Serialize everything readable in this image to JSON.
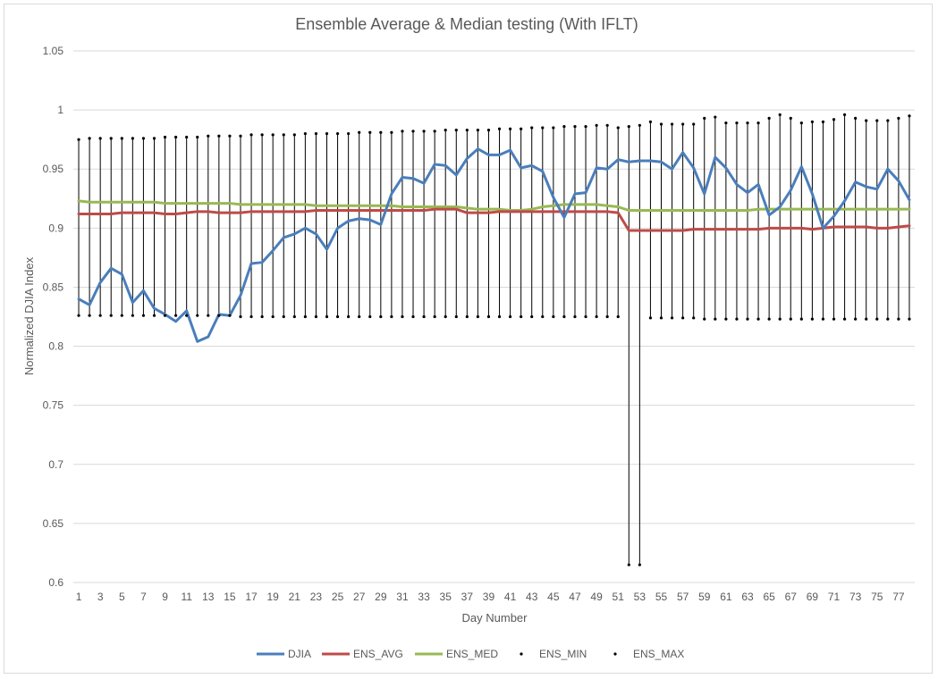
{
  "chart_data": {
    "type": "line",
    "title": "Ensemble Average & Median testing (With IFLT)",
    "xlabel": "Day Number",
    "ylabel": "Normalized DJIA Index",
    "ylim": [
      0.6,
      1.05
    ],
    "yticks": [
      "0.6",
      "0.65",
      "0.7",
      "0.75",
      "0.8",
      "0.85",
      "0.9",
      "0.95",
      "1",
      "1.05"
    ],
    "x": [
      1,
      2,
      3,
      4,
      5,
      6,
      7,
      8,
      9,
      10,
      11,
      12,
      13,
      14,
      15,
      16,
      17,
      18,
      19,
      20,
      21,
      22,
      23,
      24,
      25,
      26,
      27,
      28,
      29,
      30,
      31,
      32,
      33,
      34,
      35,
      36,
      37,
      38,
      39,
      40,
      41,
      42,
      43,
      44,
      45,
      46,
      47,
      48,
      49,
      50,
      51,
      52,
      53,
      54,
      55,
      56,
      57,
      58,
      59,
      60,
      61,
      62,
      63,
      64,
      65,
      66,
      67,
      68,
      69,
      70,
      71,
      72,
      73,
      74,
      75,
      76,
      77,
      78
    ],
    "xtick_labels": [
      "1",
      "3",
      "5",
      "7",
      "9",
      "11",
      "13",
      "15",
      "17",
      "19",
      "21",
      "23",
      "25",
      "27",
      "29",
      "31",
      "33",
      "35",
      "37",
      "39",
      "41",
      "43",
      "45",
      "47",
      "49",
      "51",
      "53",
      "55",
      "57",
      "59",
      "61",
      "63",
      "65",
      "67",
      "69",
      "71",
      "73",
      "75",
      "77"
    ],
    "grid": true,
    "legend_position": "bottom",
    "series": [
      {
        "name": "DJIA",
        "style": "line",
        "color": "#4a7ebb",
        "values": [
          0.84,
          0.835,
          0.854,
          0.866,
          0.861,
          0.837,
          0.847,
          0.832,
          0.827,
          0.821,
          0.83,
          0.804,
          0.808,
          0.827,
          0.826,
          0.843,
          0.87,
          0.871,
          0.881,
          0.892,
          0.895,
          0.9,
          0.895,
          0.882,
          0.9,
          0.906,
          0.908,
          0.907,
          0.903,
          0.929,
          0.943,
          0.942,
          0.938,
          0.954,
          0.953,
          0.945,
          0.959,
          0.967,
          0.962,
          0.962,
          0.966,
          0.951,
          0.953,
          0.948,
          0.926,
          0.909,
          0.929,
          0.93,
          0.951,
          0.95,
          0.958,
          0.956,
          0.957,
          0.957,
          0.956,
          0.95,
          0.964,
          0.951,
          0.929,
          0.96,
          0.951,
          0.937,
          0.93,
          0.937,
          0.911,
          0.918,
          0.932,
          0.952,
          0.929,
          0.9,
          0.91,
          0.923,
          0.939,
          0.935,
          0.933,
          0.95,
          0.94,
          0.924
        ]
      },
      {
        "name": "ENS_AVG",
        "style": "line",
        "color": "#be4b48",
        "values": [
          0.912,
          0.912,
          0.912,
          0.912,
          0.913,
          0.913,
          0.913,
          0.913,
          0.912,
          0.912,
          0.913,
          0.914,
          0.914,
          0.913,
          0.913,
          0.913,
          0.914,
          0.914,
          0.914,
          0.914,
          0.914,
          0.914,
          0.915,
          0.915,
          0.915,
          0.915,
          0.915,
          0.915,
          0.915,
          0.915,
          0.915,
          0.915,
          0.915,
          0.916,
          0.916,
          0.916,
          0.913,
          0.913,
          0.913,
          0.914,
          0.914,
          0.914,
          0.914,
          0.914,
          0.914,
          0.914,
          0.914,
          0.914,
          0.914,
          0.914,
          0.913,
          0.898,
          0.898,
          0.898,
          0.898,
          0.898,
          0.898,
          0.899,
          0.899,
          0.899,
          0.899,
          0.899,
          0.899,
          0.899,
          0.9,
          0.9,
          0.9,
          0.9,
          0.899,
          0.9,
          0.901,
          0.901,
          0.901,
          0.901,
          0.9,
          0.9,
          0.901,
          0.902
        ]
      },
      {
        "name": "ENS_MED",
        "style": "line",
        "color": "#98b954",
        "values": [
          0.923,
          0.922,
          0.922,
          0.922,
          0.922,
          0.922,
          0.922,
          0.922,
          0.921,
          0.921,
          0.921,
          0.921,
          0.921,
          0.921,
          0.921,
          0.92,
          0.92,
          0.92,
          0.92,
          0.92,
          0.92,
          0.92,
          0.919,
          0.919,
          0.919,
          0.919,
          0.919,
          0.919,
          0.919,
          0.919,
          0.918,
          0.918,
          0.918,
          0.918,
          0.918,
          0.918,
          0.917,
          0.916,
          0.916,
          0.916,
          0.915,
          0.915,
          0.916,
          0.918,
          0.919,
          0.92,
          0.92,
          0.92,
          0.92,
          0.919,
          0.918,
          0.915,
          0.915,
          0.915,
          0.915,
          0.915,
          0.915,
          0.915,
          0.915,
          0.915,
          0.915,
          0.915,
          0.915,
          0.916,
          0.916,
          0.916,
          0.916,
          0.916,
          0.916,
          0.916,
          0.916,
          0.916,
          0.916,
          0.916,
          0.916,
          0.916,
          0.916,
          0.916
        ]
      },
      {
        "name": "ENS_MIN",
        "style": "marker",
        "color": "#000000",
        "values": [
          0.826,
          0.826,
          0.826,
          0.826,
          0.826,
          0.826,
          0.826,
          0.826,
          0.826,
          0.826,
          0.826,
          0.826,
          0.826,
          0.826,
          0.826,
          0.825,
          0.825,
          0.825,
          0.825,
          0.825,
          0.825,
          0.825,
          0.825,
          0.825,
          0.825,
          0.825,
          0.825,
          0.825,
          0.825,
          0.825,
          0.825,
          0.825,
          0.825,
          0.825,
          0.825,
          0.825,
          0.825,
          0.825,
          0.825,
          0.825,
          0.825,
          0.825,
          0.825,
          0.825,
          0.825,
          0.825,
          0.825,
          0.825,
          0.825,
          0.825,
          0.825,
          0.615,
          0.615,
          0.824,
          0.824,
          0.824,
          0.824,
          0.824,
          0.823,
          0.823,
          0.823,
          0.823,
          0.823,
          0.823,
          0.823,
          0.823,
          0.823,
          0.823,
          0.823,
          0.823,
          0.823,
          0.823,
          0.823,
          0.823,
          0.823,
          0.823,
          0.823,
          0.823
        ]
      },
      {
        "name": "ENS_MAX",
        "style": "marker",
        "color": "#000000",
        "values": [
          0.975,
          0.976,
          0.976,
          0.976,
          0.976,
          0.976,
          0.976,
          0.976,
          0.977,
          0.977,
          0.977,
          0.977,
          0.978,
          0.978,
          0.978,
          0.978,
          0.979,
          0.979,
          0.979,
          0.979,
          0.979,
          0.98,
          0.98,
          0.98,
          0.98,
          0.98,
          0.981,
          0.981,
          0.981,
          0.981,
          0.982,
          0.982,
          0.982,
          0.982,
          0.983,
          0.983,
          0.983,
          0.983,
          0.983,
          0.984,
          0.984,
          0.984,
          0.985,
          0.985,
          0.985,
          0.986,
          0.986,
          0.986,
          0.987,
          0.987,
          0.985,
          0.986,
          0.987,
          0.99,
          0.988,
          0.988,
          0.988,
          0.988,
          0.993,
          0.994,
          0.989,
          0.989,
          0.989,
          0.989,
          0.993,
          0.996,
          0.993,
          0.989,
          0.99,
          0.99,
          0.992,
          0.996,
          0.993,
          0.991,
          0.991,
          0.991,
          0.993,
          0.995
        ]
      }
    ]
  }
}
